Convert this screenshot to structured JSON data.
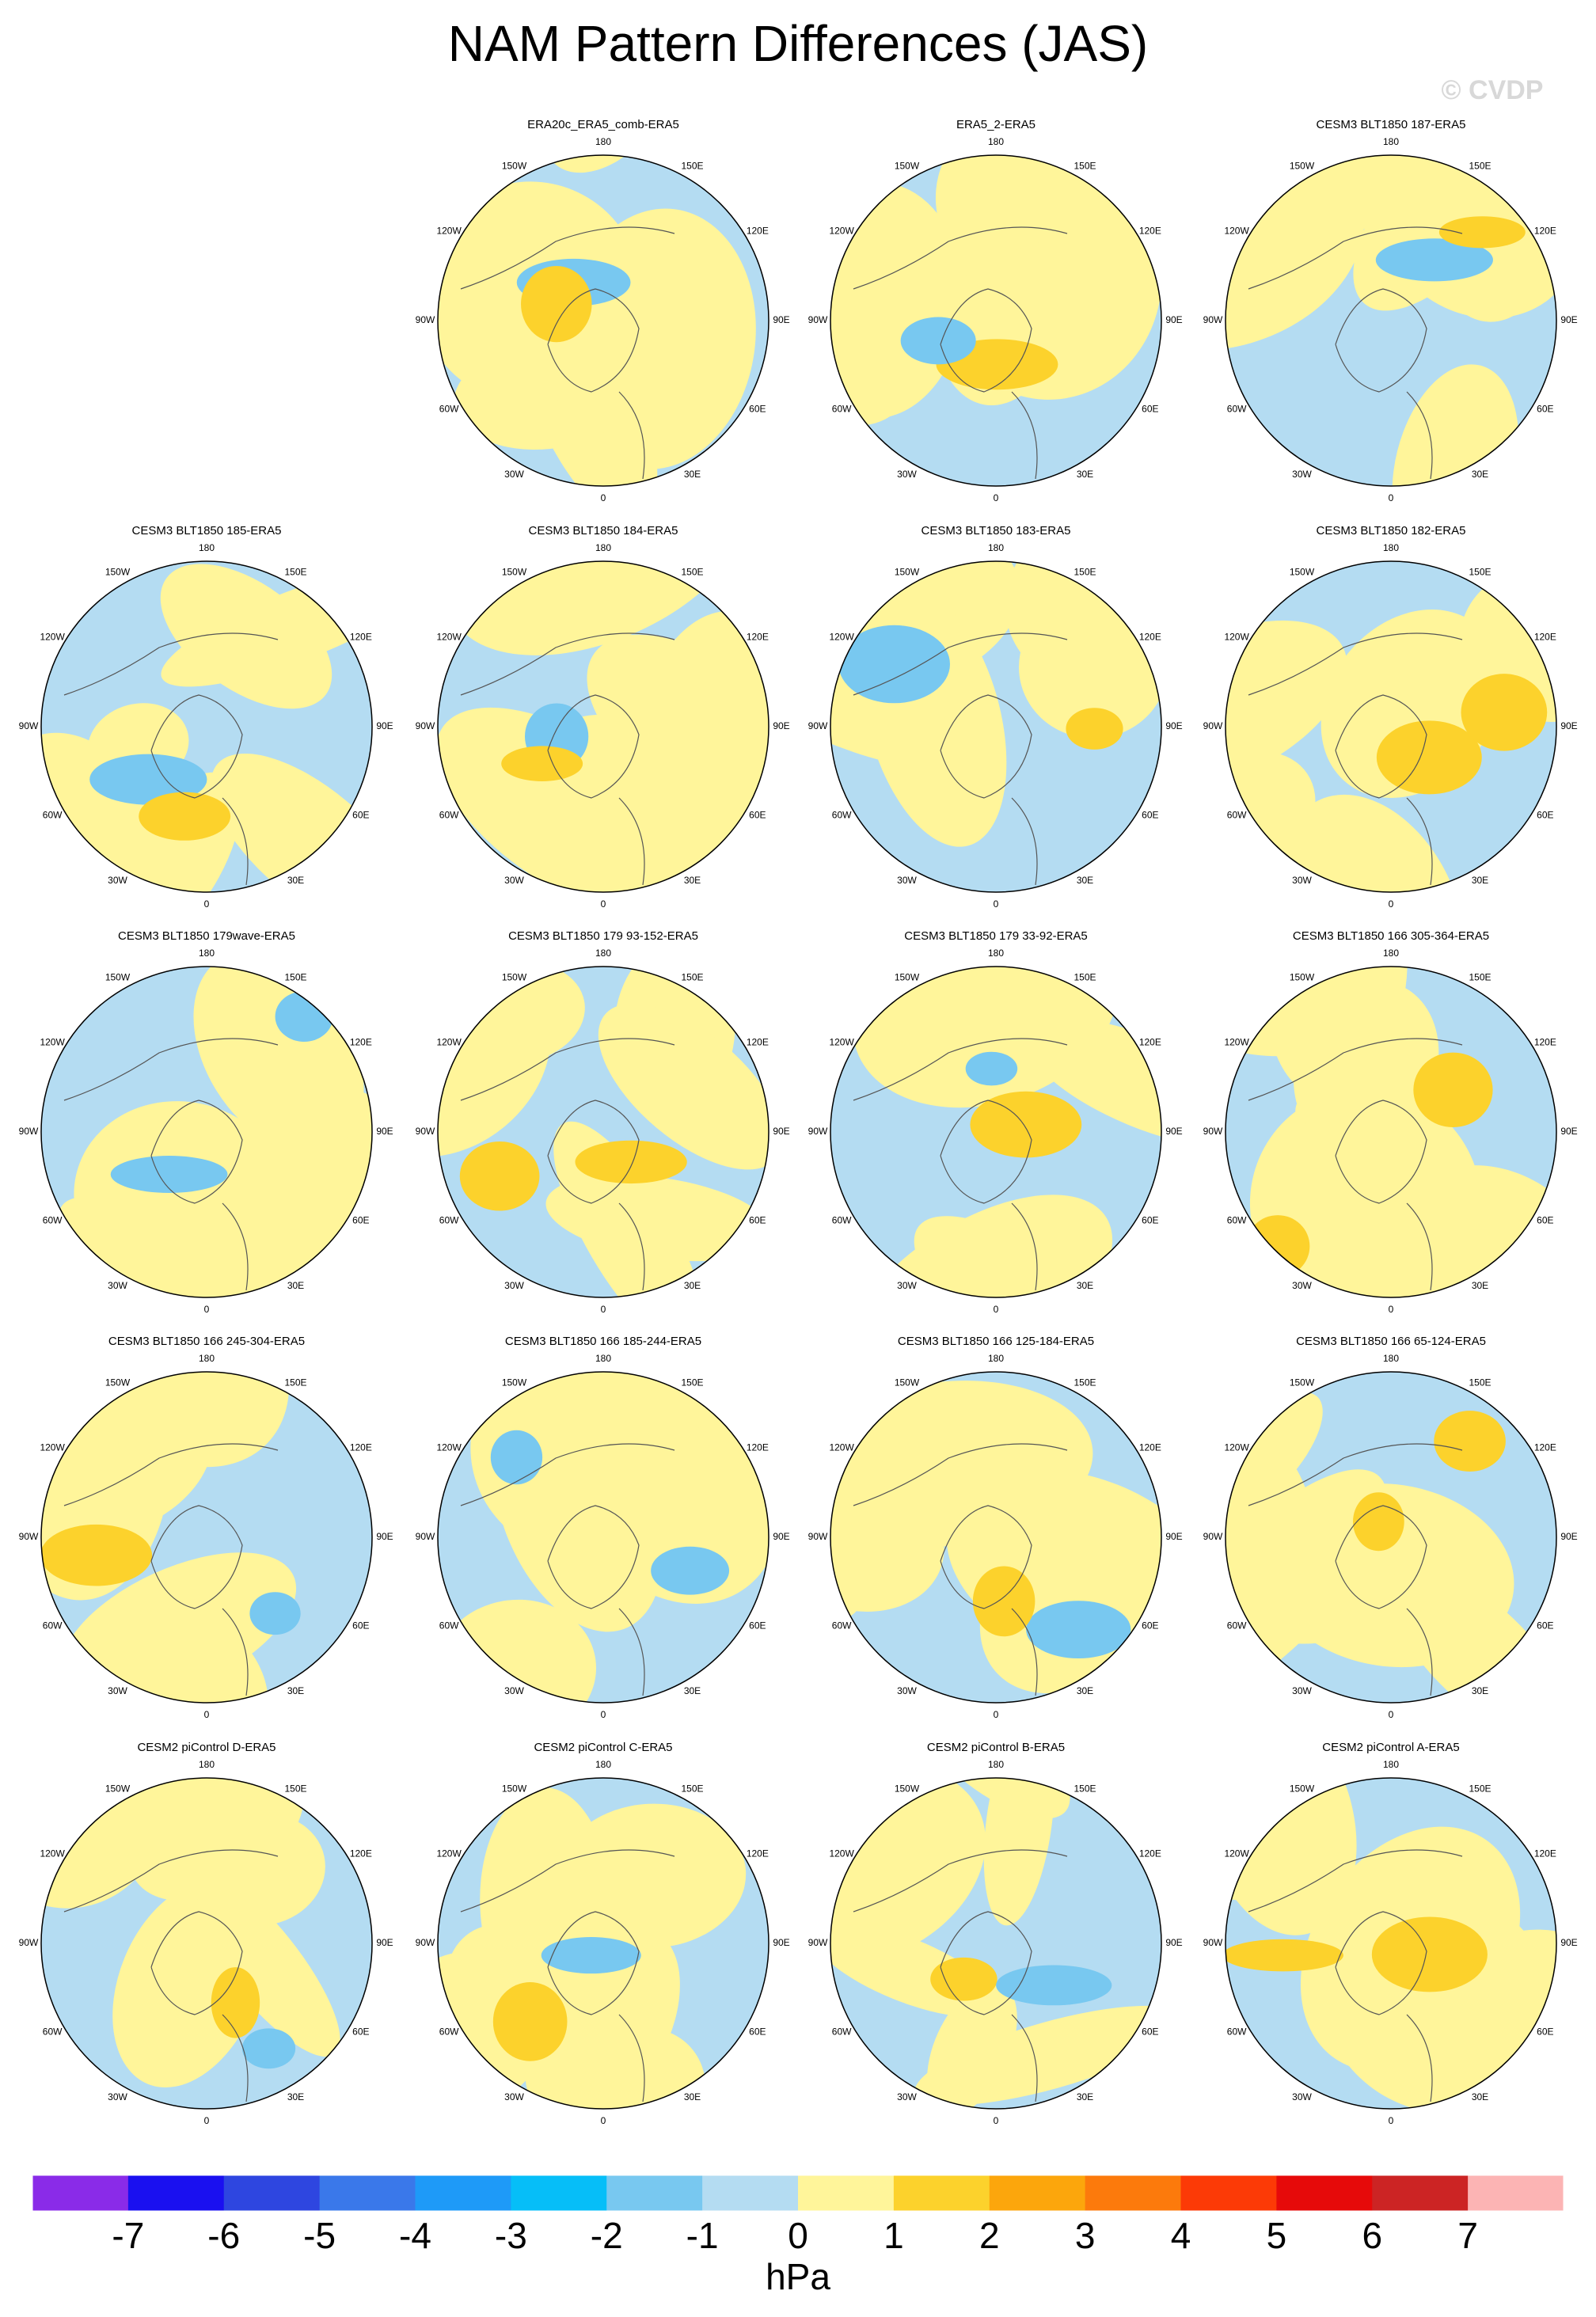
{
  "title": "NAM Pattern Differences (JAS)",
  "watermark": "© CVDP",
  "longitude_labels": [
    "0",
    "30E",
    "60E",
    "90E",
    "120E",
    "150E",
    "180",
    "150W",
    "120W",
    "90W",
    "60W",
    "30W"
  ],
  "panels": [
    {
      "title": "ERA20c_ERA5_comb-ERA5"
    },
    {
      "title": "ERA5_2-ERA5"
    },
    {
      "title": "CESM3 BLT1850 187-ERA5"
    },
    {
      "title": "CESM3 BLT1850 185-ERA5"
    },
    {
      "title": "CESM3 BLT1850 184-ERA5"
    },
    {
      "title": "CESM3 BLT1850 183-ERA5"
    },
    {
      "title": "CESM3 BLT1850 182-ERA5"
    },
    {
      "title": "CESM3 BLT1850 179wave-ERA5"
    },
    {
      "title": "CESM3 BLT1850 179 93-152-ERA5"
    },
    {
      "title": "CESM3 BLT1850 179 33-92-ERA5"
    },
    {
      "title": "CESM3 BLT1850 166 305-364-ERA5"
    },
    {
      "title": "CESM3 BLT1850 166 245-304-ERA5"
    },
    {
      "title": "CESM3 BLT1850 166 185-244-ERA5"
    },
    {
      "title": "CESM3 BLT1850 166 125-184-ERA5"
    },
    {
      "title": "CESM3 BLT1850 166 65-124-ERA5"
    },
    {
      "title": "CESM2 piControl D-ERA5"
    },
    {
      "title": "CESM2 piControl C-ERA5"
    },
    {
      "title": "CESM2 piControl B-ERA5"
    },
    {
      "title": "CESM2 piControl A-ERA5"
    }
  ],
  "colorbar": {
    "ticks": [
      -7,
      -6,
      -5,
      -4,
      -3,
      -2,
      -1,
      0,
      1,
      2,
      3,
      4,
      5,
      6,
      7
    ],
    "colors": [
      "#8a2be8",
      "#1a10f0",
      "#2e46e0",
      "#3a78ea",
      "#1e9af8",
      "#06bef8",
      "#78c8f0",
      "#b4dcf2",
      "#fff59a",
      "#fcd22c",
      "#fca60c",
      "#fc7a0c",
      "#fc3a06",
      "#e60a0a",
      "#cc2424",
      "#fcb4b4"
    ],
    "unit": "hPa"
  }
}
